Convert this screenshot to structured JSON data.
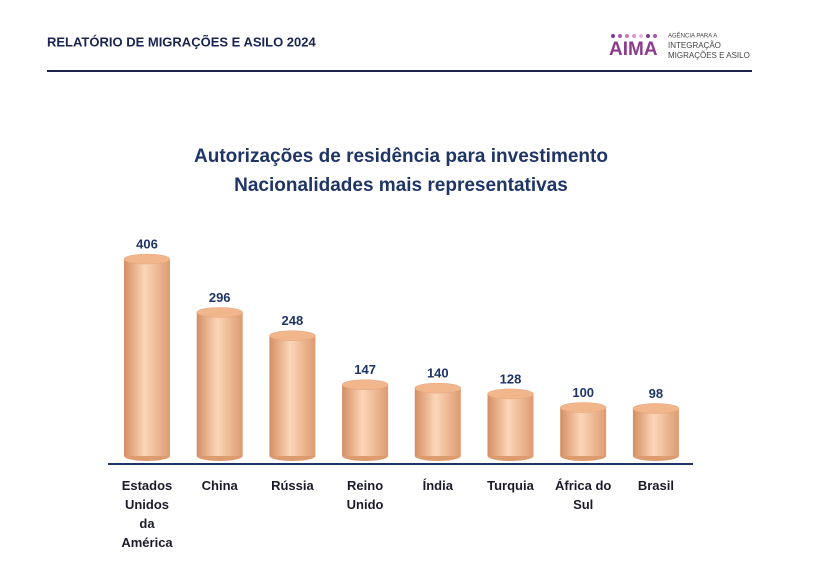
{
  "header": {
    "title": "RELATÓRIO DE MIGRAÇÕES E ASILO 2024",
    "logo": "AIMA",
    "logo_lines": [
      "AGÊNCIA PARA A",
      "INTEGRAÇÃO",
      "MIGRAÇÕES E ASILO"
    ]
  },
  "chart_data": {
    "type": "bar",
    "title": [
      "Autorizações de residência para investimento",
      "Nacionalidades mais representativas"
    ],
    "categories": [
      "Estados Unidos da América",
      "China",
      "Rússia",
      "Reino Unido",
      "Índia",
      "Turquia",
      "África do Sul",
      "Brasil"
    ],
    "values": [
      406,
      296,
      248,
      147,
      140,
      128,
      100,
      98
    ],
    "color": "#f2b68c"
  }
}
